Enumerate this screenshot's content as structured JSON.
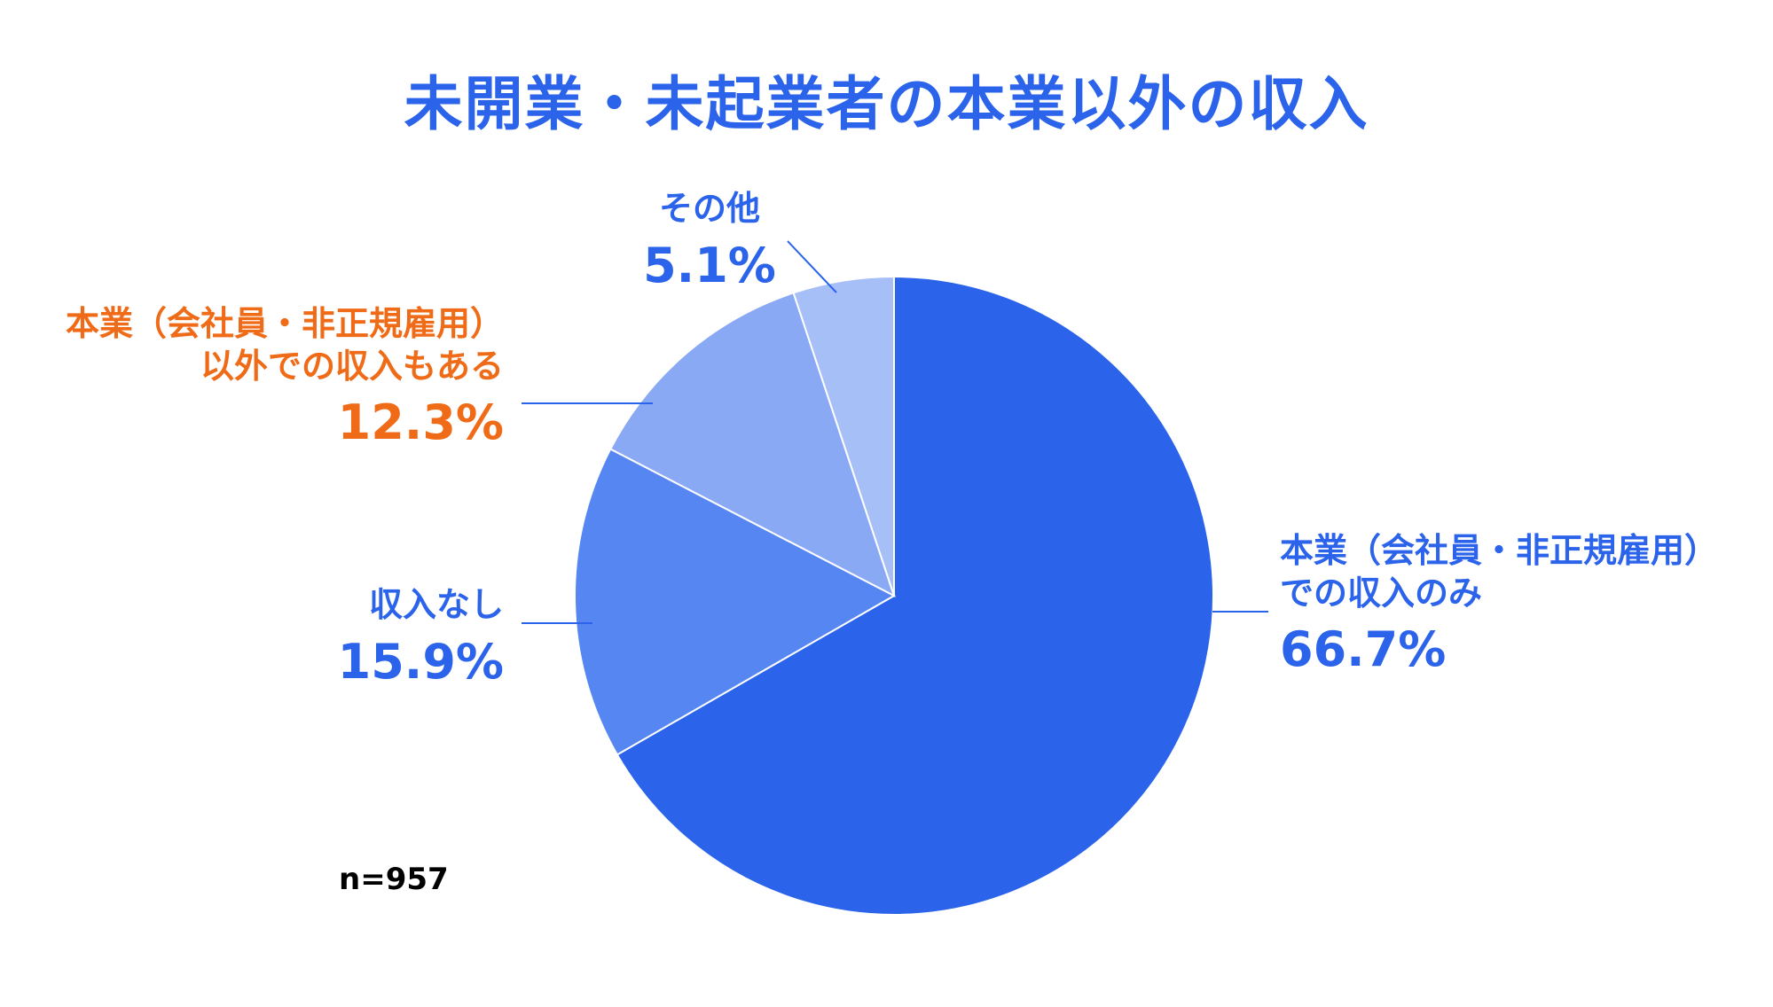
{
  "title": "未開業・未起業者の本業以外の収入",
  "sample_note": "n=957",
  "colors": {
    "title": "#2B63EB",
    "label_blue": "#2B63EB",
    "label_orange": "#F06B17",
    "slice_main": "#2B63EB",
    "slice_none": "#5586F2",
    "slice_other_income": "#8AA9F5",
    "slice_others": "#A7BFF7"
  },
  "chart_data": {
    "type": "pie",
    "title": "未開業・未起業者の本業以外の収入",
    "start_angle_deg": 0,
    "direction": "clockwise",
    "slices": [
      {
        "label_lines": [
          "本業（会社員・非正規雇用）",
          "での収入のみ"
        ],
        "value": 66.7,
        "display": "66.7%",
        "color": "#2B63EB",
        "label_color": "#2B63EB"
      },
      {
        "label_lines": [
          "収入なし"
        ],
        "value": 15.9,
        "display": "15.9%",
        "color": "#5586F2",
        "label_color": "#2B63EB"
      },
      {
        "label_lines": [
          "本業（会社員・非正規雇用）",
          "以外での収入もある"
        ],
        "value": 12.3,
        "display": "12.3%",
        "color": "#8AA9F5",
        "label_color": "#F06B17"
      },
      {
        "label_lines": [
          "その他"
        ],
        "value": 5.1,
        "display": "5.1%",
        "color": "#A7BFF7",
        "label_color": "#2B63EB"
      }
    ],
    "legend": "none",
    "n": 957
  }
}
